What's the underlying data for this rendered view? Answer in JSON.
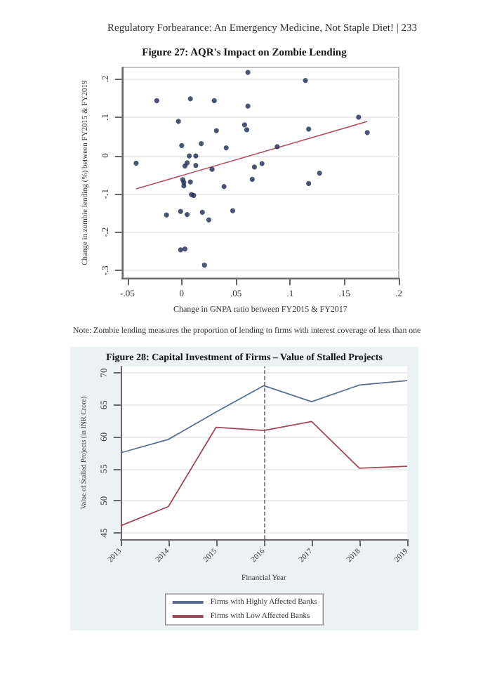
{
  "chart_data": [
    {
      "type": "scatter",
      "title": "Figure 27: AQR's Impact on Zombie Lending",
      "xlabel": "Change in GNPA ratio between FY2015 & FY2017",
      "ylabel": "Change in zombie lending (%) between FY2015 & FY2019",
      "annotations": [
        "Regulatory Forbearance: An Emergency Medicine, Not Staple Diet!  |  233",
        "Note: Zombie lending measures the proportion of lending to firms with interest coverage of less than one"
      ],
      "xlim": [
        -0.055,
        0.2
      ],
      "ylim": [
        -0.32,
        0.23
      ],
      "xticks": [
        {
          "value": -0.05,
          "label": "-.05"
        },
        0,
        {
          "value": 0.05,
          "label": ".05"
        },
        {
          "value": 0.1,
          "label": ".1"
        },
        {
          "value": 0.15,
          "label": ".15"
        },
        {
          "value": 0.2,
          "label": ".2"
        }
      ],
      "yticks": [
        {
          "value": -0.3,
          "label": "-.3"
        },
        {
          "value": -0.2,
          "label": "-.2"
        },
        {
          "value": -0.1,
          "label": "-.1"
        },
        0,
        {
          "value": 0.1,
          "label": ".1"
        },
        {
          "value": 0.2,
          "label": ".2"
        }
      ],
      "grid": "y",
      "legend": false,
      "series": [
        {
          "type": "scatter",
          "color": "#1c2b4f",
          "marker": "circle",
          "x": [
            -0.042,
            -0.023,
            -0.014,
            -0.003,
            -0.001,
            0.0,
            0.001,
            0.002,
            0.002,
            -0.001,
            0.003,
            0.003,
            0.005,
            0.005,
            0.007,
            0.008,
            0.008,
            0.009,
            0.011,
            0.013,
            0.013,
            0.018,
            0.019,
            0.021,
            0.025,
            0.028,
            0.03,
            0.032,
            0.039,
            0.041,
            0.047,
            0.058,
            0.06,
            0.061,
            0.061,
            0.065,
            0.067,
            0.074,
            0.088,
            0.114,
            0.117,
            0.117,
            0.127,
            0.163,
            0.171
          ],
          "values": [
            -0.02,
            0.143,
            -0.155,
            0.089,
            -0.146,
            0.026,
            -0.063,
            -0.07,
            -0.079,
            -0.246,
            -0.244,
            -0.027,
            -0.019,
            -0.154,
            -0.001,
            0.148,
            -0.069,
            -0.102,
            -0.104,
            -0.001,
            -0.026,
            0.031,
            -0.148,
            -0.286,
            -0.168,
            -0.036,
            0.143,
            0.065,
            -0.081,
            0.02,
            -0.144,
            0.08,
            0.067,
            0.129,
            0.217,
            -0.062,
            -0.03,
            -0.021,
            0.023,
            0.196,
            -0.073,
            0.069,
            -0.046,
            0.1,
            0.06
          ]
        },
        {
          "type": "line",
          "color": "#b05060",
          "marker": "none",
          "x": [
            -0.042,
            0.171
          ],
          "values": [
            -0.087,
            0.089
          ]
        }
      ]
    },
    {
      "type": "line",
      "title": "Figure 28: Capital Investment of Firms – Value of Stalled Projects",
      "xlabel": "Financial Year",
      "ylabel": "Value of Stalled Projects (in INR Crore)",
      "categories": [
        "2013",
        "2014",
        "2015",
        "2016",
        "2017",
        "2018",
        "2019"
      ],
      "ylim": [
        44,
        71
      ],
      "yticks": [
        45,
        50,
        55,
        60,
        65,
        70
      ],
      "grid": "y",
      "legend": "bottom",
      "marker": "none",
      "ref_lines": [
        {
          "axis": "x",
          "value": "2016",
          "line_style": "dashed",
          "color": "#555555"
        }
      ],
      "series": [
        {
          "name": "Firms with Highly Affected Banks",
          "color": "#5a6f90",
          "values": [
            57.5,
            59.6,
            63.9,
            68.0,
            65.5,
            68.1,
            68.8
          ]
        },
        {
          "name": "Firms with Low Affected Banks",
          "color": "#a04858",
          "values": [
            46.1,
            49.1,
            61.5,
            61.0,
            62.4,
            55.1,
            55.4
          ]
        }
      ]
    }
  ]
}
